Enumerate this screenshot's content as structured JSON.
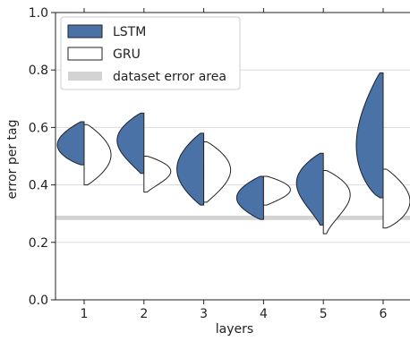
{
  "chart_data": {
    "type": "violin",
    "xlabel": "layers",
    "ylabel": "error per tag",
    "ylim": [
      0.0,
      1.0
    ],
    "yticks": [
      "0.0",
      "0.2",
      "0.4",
      "0.6",
      "0.8",
      "1.0"
    ],
    "categories": [
      "1",
      "2",
      "3",
      "4",
      "5",
      "6"
    ],
    "grid": "horizontal",
    "legend_placement": "top-left",
    "split": true,
    "series": [
      {
        "name": "LSTM",
        "side": "left",
        "color": "#4a72a6",
        "ranges": [
          [
            0.47,
            0.62
          ],
          [
            0.44,
            0.65
          ],
          [
            0.33,
            0.58
          ],
          [
            0.28,
            0.43
          ],
          [
            0.26,
            0.51
          ],
          [
            0.355,
            0.79
          ]
        ]
      },
      {
        "name": "GRU",
        "side": "right",
        "color": "#ffffff",
        "ranges": [
          [
            0.4,
            0.61
          ],
          [
            0.375,
            0.5
          ],
          [
            0.34,
            0.55
          ],
          [
            0.33,
            0.43
          ],
          [
            0.23,
            0.45
          ],
          [
            0.25,
            0.455
          ]
        ]
      }
    ],
    "dataset_error_band": {
      "label": "dataset error area",
      "range": [
        0.278,
        0.293
      ],
      "color": "#d3d3d3"
    }
  }
}
